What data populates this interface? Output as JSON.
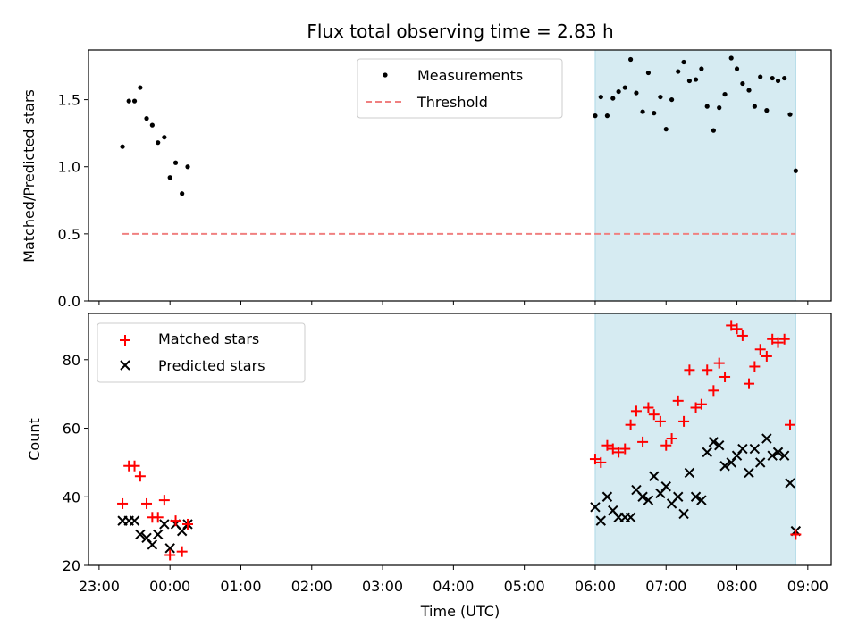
{
  "figure": {
    "title": "Flux total observing time = 2.83 h",
    "xlabel": "Time (UTC)",
    "x_ticks": [
      "23:00",
      "00:00",
      "01:00",
      "02:00",
      "03:00",
      "04:00",
      "05:00",
      "06:00",
      "07:00",
      "08:00",
      "09:00"
    ],
    "shade_color": "#add8e6",
    "top_ylabel": "Matched/Predicted stars",
    "top_y_ticks": [
      "0.0",
      "0.5",
      "1.0",
      "1.5"
    ],
    "bottom_ylabel": "Count",
    "bottom_y_ticks": [
      "20",
      "40",
      "60",
      "80"
    ],
    "top_legend": {
      "measurements": "Measurements",
      "threshold": "Threshold"
    },
    "bottom_legend": {
      "matched": "Matched stars",
      "predicted": "Predicted stars"
    }
  },
  "chart_data": [
    {
      "type": "scatter",
      "ylabel": "Matched/Predicted stars",
      "ylim": [
        0,
        1.87
      ],
      "xlim_hours": [
        -1.15,
        9.33
      ],
      "x_unit": "hours after 00:00 UTC",
      "shaded_interval_hours": [
        6.0,
        8.83
      ],
      "threshold": {
        "name": "Threshold",
        "value": 0.5,
        "x_range_hours": [
          -0.67,
          8.83
        ],
        "color": "#f08080"
      },
      "series": [
        {
          "name": "Measurements",
          "color": "#000000",
          "marker": "dot",
          "x": [
            -0.67,
            -0.58,
            -0.5,
            -0.42,
            -0.33,
            -0.25,
            -0.17,
            -0.08,
            0.0,
            0.08,
            0.17,
            0.25,
            6.0,
            6.08,
            6.17,
            6.25,
            6.33,
            6.42,
            6.5,
            6.58,
            6.67,
            6.75,
            6.83,
            6.92,
            7.0,
            7.08,
            7.17,
            7.25,
            7.33,
            7.42,
            7.5,
            7.58,
            7.67,
            7.75,
            7.83,
            7.92,
            8.0,
            8.08,
            8.17,
            8.25,
            8.33,
            8.42,
            8.5,
            8.58,
            8.67,
            8.75,
            8.83
          ],
          "y": [
            1.15,
            1.49,
            1.49,
            1.59,
            1.36,
            1.31,
            1.18,
            1.22,
            0.92,
            1.03,
            0.8,
            1.0,
            1.38,
            1.52,
            1.38,
            1.51,
            1.56,
            1.59,
            1.8,
            1.55,
            1.41,
            1.7,
            1.4,
            1.52,
            1.28,
            1.5,
            1.71,
            1.78,
            1.64,
            1.65,
            1.73,
            1.45,
            1.27,
            1.44,
            1.54,
            1.81,
            1.73,
            1.62,
            1.57,
            1.45,
            1.67,
            1.42,
            1.66,
            1.64,
            1.66,
            1.39,
            0.97
          ]
        }
      ]
    },
    {
      "type": "scatter",
      "ylabel": "Count",
      "xlabel": "Time (UTC)",
      "ylim": [
        20,
        93.5
      ],
      "xlim_hours": [
        -1.15,
        9.33
      ],
      "x_unit": "hours after 00:00 UTC",
      "shaded_interval_hours": [
        6.0,
        8.83
      ],
      "series": [
        {
          "name": "Matched stars",
          "color": "#ff0000",
          "marker": "plus",
          "x": [
            -0.67,
            -0.58,
            -0.5,
            -0.42,
            -0.33,
            -0.25,
            -0.17,
            -0.08,
            0.0,
            0.08,
            0.17,
            0.25,
            6.0,
            6.08,
            6.17,
            6.25,
            6.33,
            6.42,
            6.5,
            6.58,
            6.67,
            6.75,
            6.83,
            6.92,
            7.0,
            7.08,
            7.17,
            7.25,
            7.33,
            7.42,
            7.5,
            7.58,
            7.67,
            7.75,
            7.83,
            7.92,
            8.0,
            8.08,
            8.17,
            8.25,
            8.33,
            8.42,
            8.5,
            8.58,
            8.67,
            8.75,
            8.83
          ],
          "y": [
            38,
            49,
            49,
            46,
            38,
            34,
            34,
            39,
            23,
            33,
            24,
            32,
            51,
            50,
            55,
            54,
            53,
            54,
            61,
            65,
            56,
            66,
            64,
            62,
            55,
            57,
            68,
            62,
            77,
            66,
            67,
            77,
            71,
            79,
            75,
            90,
            89,
            87,
            73,
            78,
            83,
            81,
            86,
            85,
            86,
            61,
            29
          ]
        },
        {
          "name": "Predicted stars",
          "color": "#000000",
          "marker": "x",
          "x": [
            -0.67,
            -0.58,
            -0.5,
            -0.42,
            -0.33,
            -0.25,
            -0.17,
            -0.08,
            0.0,
            0.08,
            0.17,
            0.25,
            6.0,
            6.08,
            6.17,
            6.25,
            6.33,
            6.42,
            6.5,
            6.58,
            6.67,
            6.75,
            6.83,
            6.92,
            7.0,
            7.08,
            7.17,
            7.25,
            7.33,
            7.42,
            7.5,
            7.58,
            7.67,
            7.75,
            7.83,
            7.92,
            8.0,
            8.08,
            8.17,
            8.25,
            8.33,
            8.42,
            8.5,
            8.58,
            8.67,
            8.75,
            8.83
          ],
          "y": [
            33,
            33,
            33,
            29,
            28,
            26,
            29,
            32,
            25,
            32,
            30,
            32,
            37,
            33,
            40,
            36,
            34,
            34,
            34,
            42,
            40,
            39,
            46,
            41,
            43,
            38,
            40,
            35,
            47,
            40,
            39,
            53,
            56,
            55,
            49,
            50,
            52,
            54,
            47,
            54,
            50,
            57,
            52,
            53,
            52,
            44,
            30
          ]
        }
      ]
    }
  ]
}
